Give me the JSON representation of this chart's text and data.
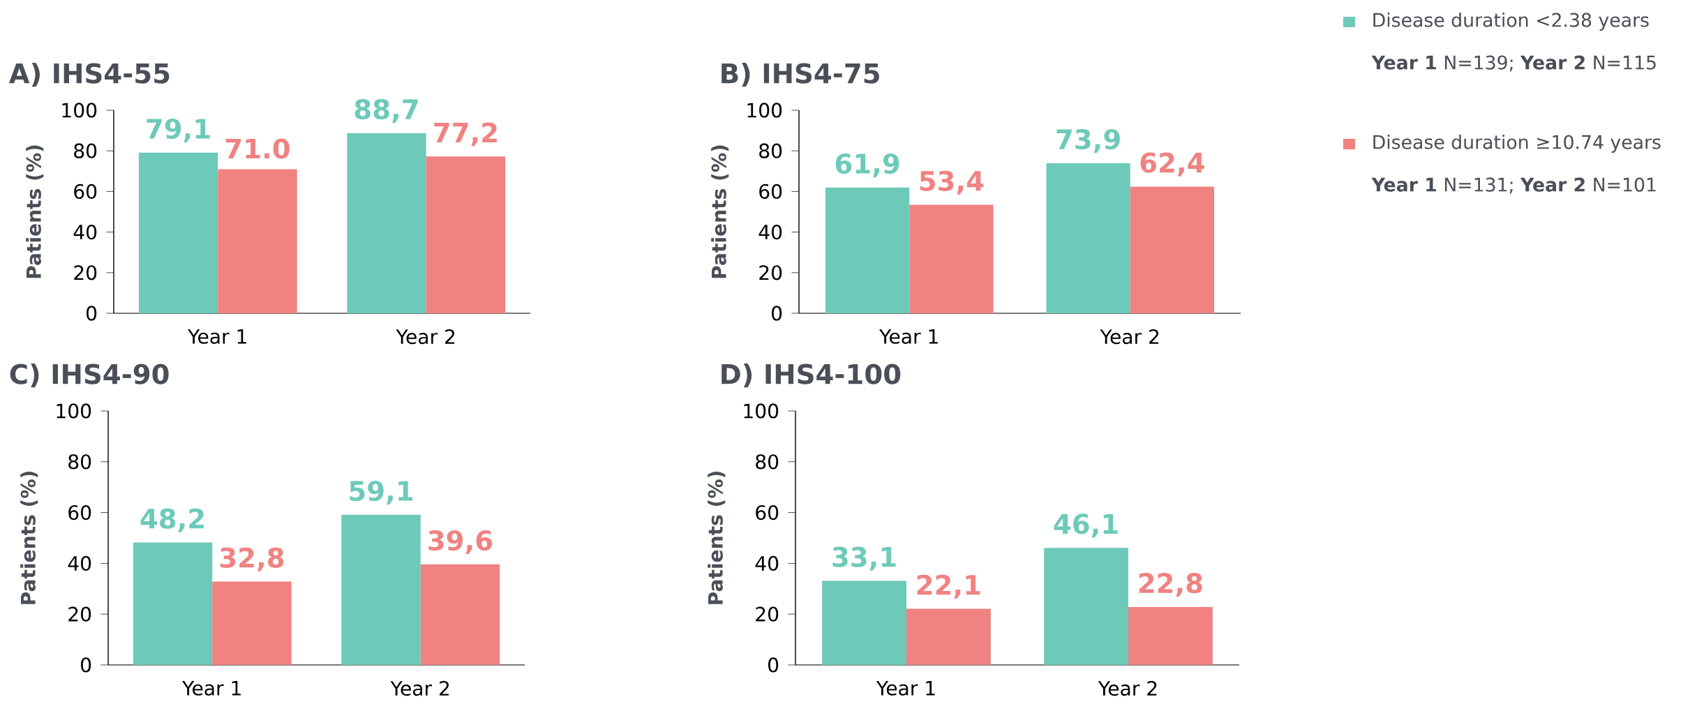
{
  "chart_data": [
    {
      "type": "bar",
      "title": "A) IHS4-55",
      "ylabel": "Patients (%)",
      "categories": [
        "Year 1",
        "Year 2"
      ],
      "ylim": [
        0,
        100
      ],
      "yticks": [
        0,
        20,
        40,
        60,
        80,
        100
      ],
      "grid": false,
      "legend": false,
      "series": [
        {
          "color": "#6dcab9",
          "values": [
            79.1,
            88.7
          ],
          "value_labels": [
            "79,1",
            "88,7"
          ]
        },
        {
          "color": "#f08281",
          "values": [
            71.0,
            77.2
          ],
          "value_labels": [
            "71.0",
            "77,2"
          ]
        }
      ]
    },
    {
      "type": "bar",
      "title": "B) IHS4-75",
      "ylabel": "Patients (%)",
      "categories": [
        "Year 1",
        "Year 2"
      ],
      "ylim": [
        0,
        100
      ],
      "yticks": [
        0,
        20,
        40,
        60,
        80,
        100
      ],
      "grid": false,
      "legend": "right",
      "series": [
        {
          "name": "Disease duration <2.38 years",
          "color": "#6dcab9",
          "values": [
            61.9,
            73.9
          ],
          "value_labels": [
            "61,9",
            "73,9"
          ]
        },
        {
          "name": "Disease duration ≥10.74 years",
          "color": "#f08281",
          "values": [
            53.4,
            62.4
          ],
          "value_labels": [
            "53,4",
            "62,4"
          ]
        }
      ],
      "annotations": [
        "**Year 1** N=139; **Year 2** N=115",
        "**Year 1** N=131; **Year 2** N=101"
      ]
    },
    {
      "type": "bar",
      "title": "C) IHS4-90",
      "ylabel": "Patients (%)",
      "categories": [
        "Year 1",
        "Year 2"
      ],
      "ylim": [
        0,
        100
      ],
      "yticks": [
        0,
        20,
        40,
        60,
        80,
        100
      ],
      "grid": false,
      "legend": false,
      "series": [
        {
          "color": "#6dcab9",
          "values": [
            48.2,
            59.1
          ],
          "value_labels": [
            "48,2",
            "59,1"
          ]
        },
        {
          "color": "#f08281",
          "values": [
            32.8,
            39.6
          ],
          "value_labels": [
            "32,8",
            "39,6"
          ]
        }
      ]
    },
    {
      "type": "bar",
      "title": "D) IHS4-100",
      "ylabel": "Patients (%)",
      "categories": [
        "Year 1",
        "Year 2"
      ],
      "ylim": [
        0,
        100
      ],
      "yticks": [
        0,
        20,
        40,
        60,
        80,
        100
      ],
      "grid": false,
      "legend": false,
      "series": [
        {
          "color": "#6dcab9",
          "values": [
            33.1,
            46.1
          ],
          "value_labels": [
            "33,1",
            "46,1"
          ]
        },
        {
          "color": "#f08281",
          "values": [
            22.1,
            22.8
          ],
          "value_labels": [
            "22,1",
            "22,8"
          ]
        }
      ]
    }
  ]
}
